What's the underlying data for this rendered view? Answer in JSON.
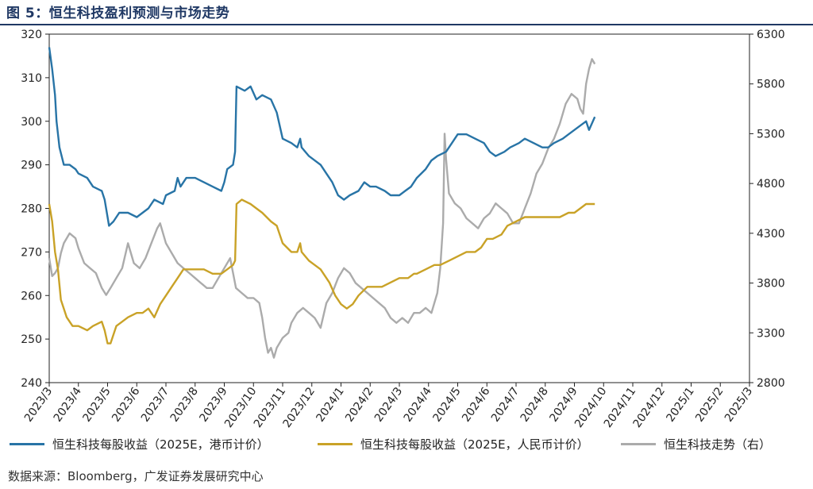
{
  "figure": {
    "title": "图 5：恒生科技盈利预测与市场走势",
    "source": "数据来源：Bloomberg，广发证券发展研究中心"
  },
  "colors": {
    "eps_hkd": "#2874a6",
    "eps_rmb": "#c9a227",
    "index": "#ababab",
    "axis": "#222222",
    "title": "#1f3864"
  },
  "chart_data": {
    "type": "line",
    "x_ticks": [
      "2023/3",
      "2023/4",
      "2023/5",
      "2023/6",
      "2023/7",
      "2023/8",
      "2023/9",
      "2023/10",
      "2023/11",
      "2023/12",
      "2024/1",
      "2024/2",
      "2024/3",
      "2024/4",
      "2024/5",
      "2024/6",
      "2024/7",
      "2024/8",
      "2024/9",
      "2024/10",
      "2024/11",
      "2024/12",
      "2025/1",
      "2025/2",
      "2025/3"
    ],
    "y_left": {
      "min": 240,
      "max": 320,
      "ticks": [
        240,
        250,
        260,
        270,
        280,
        290,
        300,
        310,
        320
      ]
    },
    "y_right": {
      "min": 2800,
      "max": 6300,
      "ticks": [
        2800,
        3300,
        3800,
        4300,
        4800,
        5300,
        5800,
        6300
      ]
    },
    "series": [
      {
        "name": "恒生科技每股收益（2025E，港币计价）",
        "axis": "left",
        "points": [
          [
            0,
            317
          ],
          [
            0.1,
            312
          ],
          [
            0.2,
            306
          ],
          [
            0.25,
            300
          ],
          [
            0.35,
            294
          ],
          [
            0.5,
            290
          ],
          [
            0.7,
            290
          ],
          [
            0.9,
            289
          ],
          [
            1.0,
            288
          ],
          [
            1.3,
            287
          ],
          [
            1.5,
            285
          ],
          [
            1.8,
            284
          ],
          [
            1.9,
            282
          ],
          [
            2.0,
            278
          ],
          [
            2.05,
            276
          ],
          [
            2.2,
            277
          ],
          [
            2.4,
            279
          ],
          [
            2.7,
            279
          ],
          [
            3.0,
            278
          ],
          [
            3.2,
            279
          ],
          [
            3.4,
            280
          ],
          [
            3.6,
            282
          ],
          [
            3.9,
            281
          ],
          [
            4.0,
            283
          ],
          [
            4.3,
            284
          ],
          [
            4.4,
            287
          ],
          [
            4.5,
            285
          ],
          [
            4.7,
            287
          ],
          [
            5.0,
            287
          ],
          [
            5.3,
            286
          ],
          [
            5.6,
            285
          ],
          [
            5.9,
            284
          ],
          [
            6.0,
            286
          ],
          [
            6.1,
            289
          ],
          [
            6.3,
            290
          ],
          [
            6.37,
            293
          ],
          [
            6.42,
            308
          ],
          [
            6.7,
            307
          ],
          [
            6.9,
            308
          ],
          [
            7.1,
            305
          ],
          [
            7.3,
            306
          ],
          [
            7.6,
            305
          ],
          [
            7.8,
            302
          ],
          [
            8.0,
            296
          ],
          [
            8.3,
            295
          ],
          [
            8.5,
            294
          ],
          [
            8.6,
            296
          ],
          [
            8.65,
            294
          ],
          [
            8.9,
            292
          ],
          [
            9.1,
            291
          ],
          [
            9.3,
            290
          ],
          [
            9.5,
            288
          ],
          [
            9.7,
            286
          ],
          [
            9.9,
            283
          ],
          [
            10.1,
            282
          ],
          [
            10.3,
            283
          ],
          [
            10.6,
            284
          ],
          [
            10.8,
            286
          ],
          [
            11.0,
            285
          ],
          [
            11.2,
            285
          ],
          [
            11.5,
            284
          ],
          [
            11.7,
            283
          ],
          [
            12.0,
            283
          ],
          [
            12.2,
            284
          ],
          [
            12.4,
            285
          ],
          [
            12.6,
            287
          ],
          [
            12.9,
            289
          ],
          [
            13.1,
            291
          ],
          [
            13.3,
            292
          ],
          [
            13.6,
            293
          ],
          [
            13.8,
            295
          ],
          [
            14.0,
            297
          ],
          [
            14.3,
            297
          ],
          [
            14.6,
            296
          ],
          [
            14.9,
            295
          ],
          [
            15.1,
            293
          ],
          [
            15.3,
            292
          ],
          [
            15.6,
            293
          ],
          [
            15.8,
            294
          ],
          [
            16.1,
            295
          ],
          [
            16.3,
            296
          ],
          [
            16.6,
            295
          ],
          [
            16.9,
            294
          ],
          [
            17.1,
            294
          ],
          [
            17.3,
            295
          ],
          [
            17.6,
            296
          ],
          [
            17.8,
            297
          ],
          [
            18.0,
            298
          ],
          [
            18.2,
            299
          ],
          [
            18.4,
            300
          ],
          [
            18.5,
            298
          ],
          [
            18.7,
            301
          ]
        ]
      },
      {
        "name": "恒生科技每股收益（2025E，人民币计价）",
        "axis": "left",
        "points": [
          [
            0,
            281
          ],
          [
            0.1,
            277
          ],
          [
            0.2,
            270
          ],
          [
            0.3,
            266
          ],
          [
            0.4,
            259
          ],
          [
            0.6,
            255
          ],
          [
            0.8,
            253
          ],
          [
            1.0,
            253
          ],
          [
            1.3,
            252
          ],
          [
            1.5,
            253
          ],
          [
            1.8,
            254
          ],
          [
            1.9,
            252
          ],
          [
            2.0,
            249
          ],
          [
            2.1,
            249
          ],
          [
            2.3,
            253
          ],
          [
            2.5,
            254
          ],
          [
            2.7,
            255
          ],
          [
            3.0,
            256
          ],
          [
            3.2,
            256
          ],
          [
            3.4,
            257
          ],
          [
            3.6,
            255
          ],
          [
            3.8,
            258
          ],
          [
            4.0,
            260
          ],
          [
            4.2,
            262
          ],
          [
            4.4,
            264
          ],
          [
            4.6,
            266
          ],
          [
            5.0,
            266
          ],
          [
            5.3,
            266
          ],
          [
            5.6,
            265
          ],
          [
            5.9,
            265
          ],
          [
            6.1,
            266
          ],
          [
            6.3,
            267
          ],
          [
            6.37,
            268
          ],
          [
            6.42,
            281
          ],
          [
            6.6,
            282
          ],
          [
            6.9,
            281
          ],
          [
            7.1,
            280
          ],
          [
            7.3,
            279
          ],
          [
            7.6,
            277
          ],
          [
            7.8,
            276
          ],
          [
            8.0,
            272
          ],
          [
            8.3,
            270
          ],
          [
            8.5,
            270
          ],
          [
            8.6,
            272
          ],
          [
            8.65,
            270
          ],
          [
            8.9,
            268
          ],
          [
            9.1,
            267
          ],
          [
            9.3,
            266
          ],
          [
            9.6,
            263
          ],
          [
            9.8,
            260
          ],
          [
            10.0,
            258
          ],
          [
            10.2,
            257
          ],
          [
            10.4,
            258
          ],
          [
            10.6,
            260
          ],
          [
            10.9,
            262
          ],
          [
            11.1,
            262
          ],
          [
            11.4,
            262
          ],
          [
            11.7,
            263
          ],
          [
            12.0,
            264
          ],
          [
            12.3,
            264
          ],
          [
            12.5,
            265
          ],
          [
            12.6,
            265
          ],
          [
            12.9,
            266
          ],
          [
            13.2,
            267
          ],
          [
            13.4,
            267
          ],
          [
            13.7,
            268
          ],
          [
            14.0,
            269
          ],
          [
            14.3,
            270
          ],
          [
            14.6,
            270
          ],
          [
            14.8,
            271
          ],
          [
            15.0,
            273
          ],
          [
            15.2,
            273
          ],
          [
            15.5,
            274
          ],
          [
            15.7,
            276
          ],
          [
            16.0,
            277
          ],
          [
            16.3,
            278
          ],
          [
            16.6,
            278
          ],
          [
            16.9,
            278
          ],
          [
            17.2,
            278
          ],
          [
            17.5,
            278
          ],
          [
            17.8,
            279
          ],
          [
            18.0,
            279
          ],
          [
            18.2,
            280
          ],
          [
            18.4,
            281
          ],
          [
            18.7,
            281
          ]
        ]
      },
      {
        "name": "恒生科技走势（右）",
        "axis": "right",
        "points": [
          [
            0,
            4050
          ],
          [
            0.1,
            3870
          ],
          [
            0.2,
            3900
          ],
          [
            0.3,
            3950
          ],
          [
            0.4,
            4100
          ],
          [
            0.5,
            4200
          ],
          [
            0.7,
            4300
          ],
          [
            0.9,
            4250
          ],
          [
            1.0,
            4150
          ],
          [
            1.2,
            4000
          ],
          [
            1.4,
            3950
          ],
          [
            1.6,
            3900
          ],
          [
            1.8,
            3750
          ],
          [
            1.95,
            3680
          ],
          [
            2.1,
            3750
          ],
          [
            2.3,
            3850
          ],
          [
            2.5,
            3950
          ],
          [
            2.7,
            4200
          ],
          [
            2.9,
            4000
          ],
          [
            3.1,
            3950
          ],
          [
            3.3,
            4050
          ],
          [
            3.5,
            4200
          ],
          [
            3.7,
            4350
          ],
          [
            3.8,
            4400
          ],
          [
            4.0,
            4200
          ],
          [
            4.2,
            4100
          ],
          [
            4.4,
            4000
          ],
          [
            4.6,
            3950
          ],
          [
            4.8,
            3900
          ],
          [
            5.0,
            3850
          ],
          [
            5.2,
            3800
          ],
          [
            5.4,
            3750
          ],
          [
            5.6,
            3750
          ],
          [
            5.8,
            3850
          ],
          [
            6.0,
            3950
          ],
          [
            6.2,
            4050
          ],
          [
            6.4,
            3750
          ],
          [
            6.6,
            3700
          ],
          [
            6.8,
            3650
          ],
          [
            7.0,
            3650
          ],
          [
            7.2,
            3600
          ],
          [
            7.3,
            3450
          ],
          [
            7.4,
            3250
          ],
          [
            7.5,
            3100
          ],
          [
            7.6,
            3150
          ],
          [
            7.7,
            3050
          ],
          [
            7.8,
            3150
          ],
          [
            8.0,
            3250
          ],
          [
            8.2,
            3300
          ],
          [
            8.3,
            3400
          ],
          [
            8.5,
            3500
          ],
          [
            8.7,
            3550
          ],
          [
            8.9,
            3500
          ],
          [
            9.1,
            3450
          ],
          [
            9.3,
            3350
          ],
          [
            9.5,
            3600
          ],
          [
            9.7,
            3700
          ],
          [
            9.9,
            3850
          ],
          [
            10.1,
            3950
          ],
          [
            10.3,
            3900
          ],
          [
            10.5,
            3800
          ],
          [
            10.7,
            3750
          ],
          [
            10.9,
            3700
          ],
          [
            11.1,
            3650
          ],
          [
            11.3,
            3600
          ],
          [
            11.5,
            3550
          ],
          [
            11.7,
            3450
          ],
          [
            11.9,
            3400
          ],
          [
            12.1,
            3450
          ],
          [
            12.3,
            3400
          ],
          [
            12.5,
            3500
          ],
          [
            12.7,
            3500
          ],
          [
            12.9,
            3550
          ],
          [
            13.1,
            3500
          ],
          [
            13.3,
            3700
          ],
          [
            13.4,
            3950
          ],
          [
            13.5,
            4400
          ],
          [
            13.55,
            5300
          ],
          [
            13.6,
            5050
          ],
          [
            13.7,
            4700
          ],
          [
            13.9,
            4600
          ],
          [
            14.1,
            4550
          ],
          [
            14.3,
            4450
          ],
          [
            14.5,
            4400
          ],
          [
            14.7,
            4350
          ],
          [
            14.9,
            4450
          ],
          [
            15.1,
            4500
          ],
          [
            15.3,
            4600
          ],
          [
            15.5,
            4550
          ],
          [
            15.7,
            4500
          ],
          [
            15.9,
            4400
          ],
          [
            16.1,
            4400
          ],
          [
            16.3,
            4550
          ],
          [
            16.5,
            4700
          ],
          [
            16.7,
            4900
          ],
          [
            16.9,
            5000
          ],
          [
            17.1,
            5150
          ],
          [
            17.3,
            5250
          ],
          [
            17.5,
            5400
          ],
          [
            17.7,
            5600
          ],
          [
            17.9,
            5700
          ],
          [
            18.1,
            5650
          ],
          [
            18.2,
            5550
          ],
          [
            18.3,
            5500
          ],
          [
            18.4,
            5800
          ],
          [
            18.5,
            5950
          ],
          [
            18.6,
            6050
          ],
          [
            18.7,
            6000
          ]
        ]
      }
    ]
  }
}
